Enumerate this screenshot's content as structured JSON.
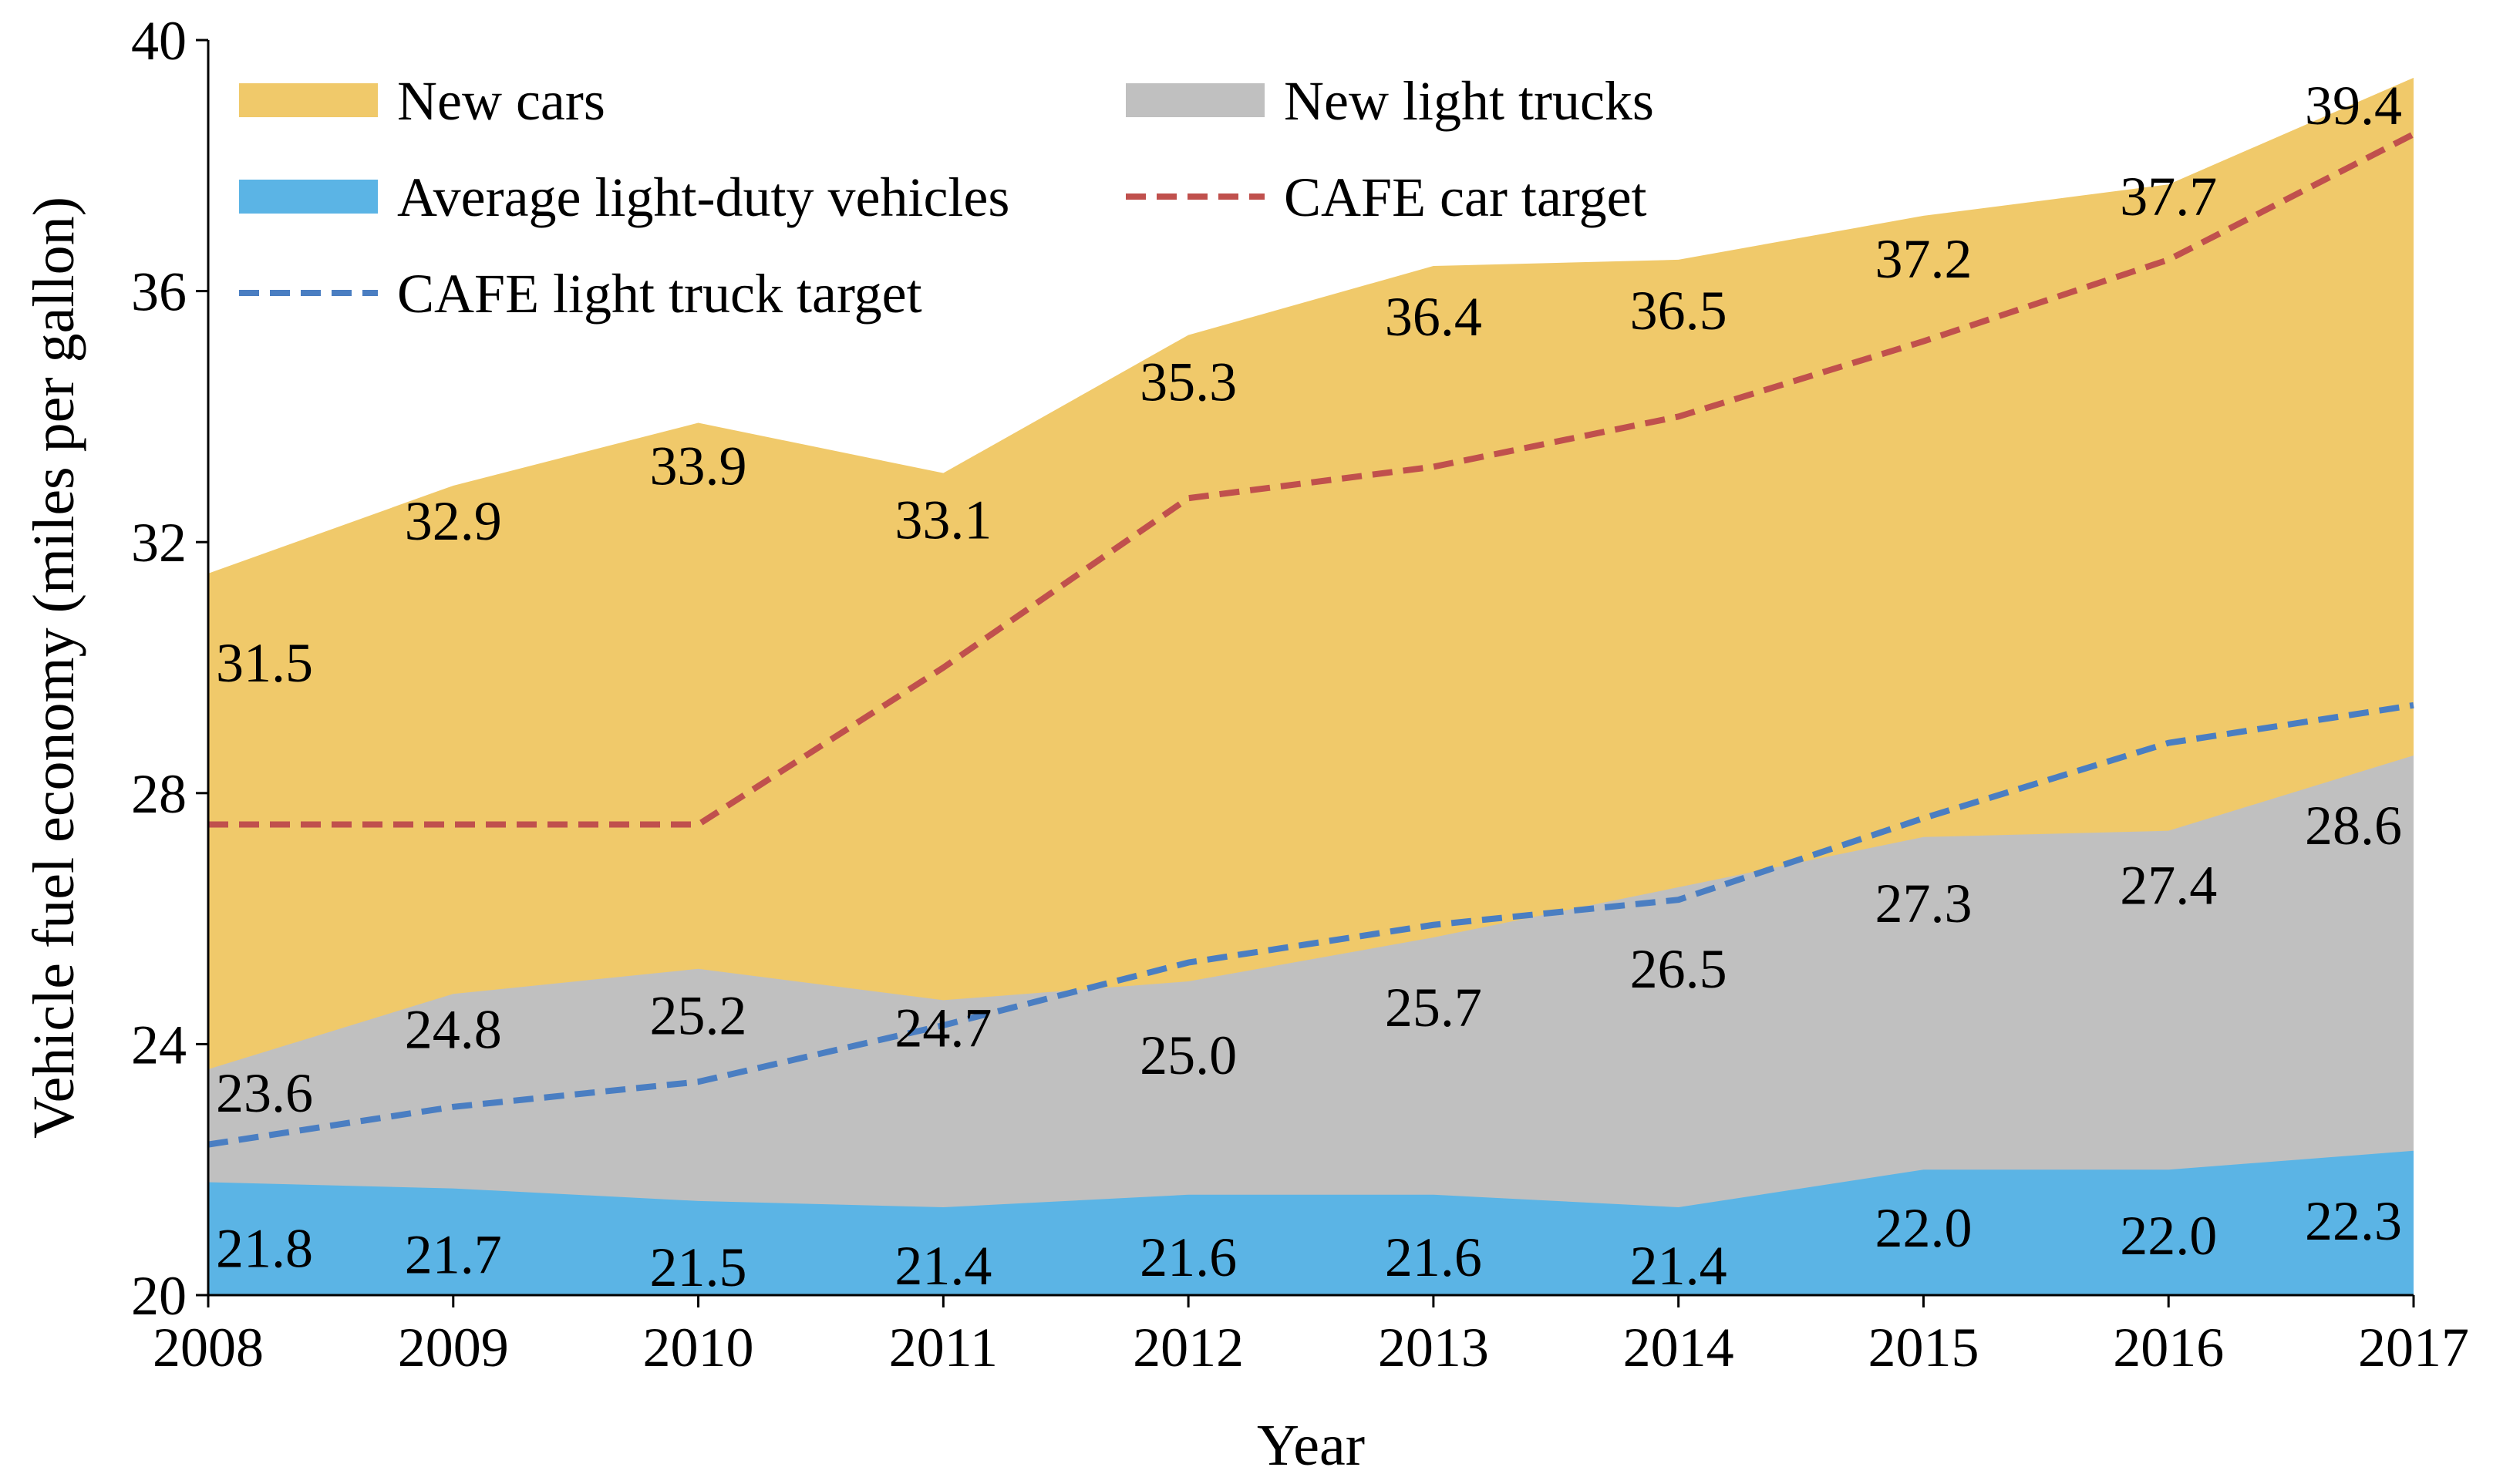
{
  "chart_data": {
    "type": "area",
    "title": "",
    "xlabel": "Year",
    "ylabel": "Vehicle fuel economy (miles per gallon)",
    "x": [
      "2008",
      "2009",
      "2010",
      "2011",
      "2012",
      "2013",
      "2014",
      "2015",
      "2016",
      "2017"
    ],
    "ylim": [
      20,
      40
    ],
    "yticks": [
      "20",
      "24",
      "28",
      "32",
      "36",
      "40"
    ],
    "grid": false,
    "legend_position": "top-left",
    "series": [
      {
        "name": "New cars",
        "kind": "area",
        "color": "#F0C96A",
        "values": [
          31.5,
          32.9,
          33.9,
          33.1,
          35.3,
          36.4,
          36.5,
          37.2,
          37.7,
          39.4
        ],
        "labels": [
          "31.5",
          "32.9",
          "33.9",
          "33.1",
          "35.3",
          "36.4",
          "36.5",
          "37.2",
          "37.7",
          "39.4"
        ]
      },
      {
        "name": "New light trucks",
        "kind": "area",
        "color": "#C0C0C0",
        "values": [
          23.6,
          24.8,
          25.2,
          24.7,
          25.0,
          25.7,
          26.5,
          27.3,
          27.4,
          28.6
        ],
        "labels": [
          "23.6",
          "24.8",
          "25.2",
          "24.7",
          "25.0",
          "25.7",
          "26.5",
          "27.3",
          "27.4",
          "28.6"
        ]
      },
      {
        "name": "Average light-duty vehicles",
        "kind": "area",
        "color": "#5BB4E5",
        "values": [
          21.8,
          21.7,
          21.5,
          21.4,
          21.6,
          21.6,
          21.4,
          22.0,
          22.0,
          22.3
        ],
        "labels": [
          "21.8",
          "21.7",
          "21.5",
          "21.4",
          "21.6",
          "21.6",
          "21.4",
          "22.0",
          "22.0",
          "22.3"
        ]
      },
      {
        "name": "CAFE car target",
        "kind": "dashed-line",
        "color": "#C0504D",
        "values": [
          27.5,
          27.5,
          27.5,
          30.0,
          32.7,
          33.2,
          34.0,
          35.2,
          36.5,
          38.5
        ]
      },
      {
        "name": "CAFE light truck target",
        "kind": "dashed-line",
        "color": "#4A7EC2",
        "values": [
          22.4,
          23.0,
          23.4,
          24.3,
          25.3,
          25.9,
          26.3,
          27.6,
          28.8,
          29.4
        ]
      }
    ]
  }
}
